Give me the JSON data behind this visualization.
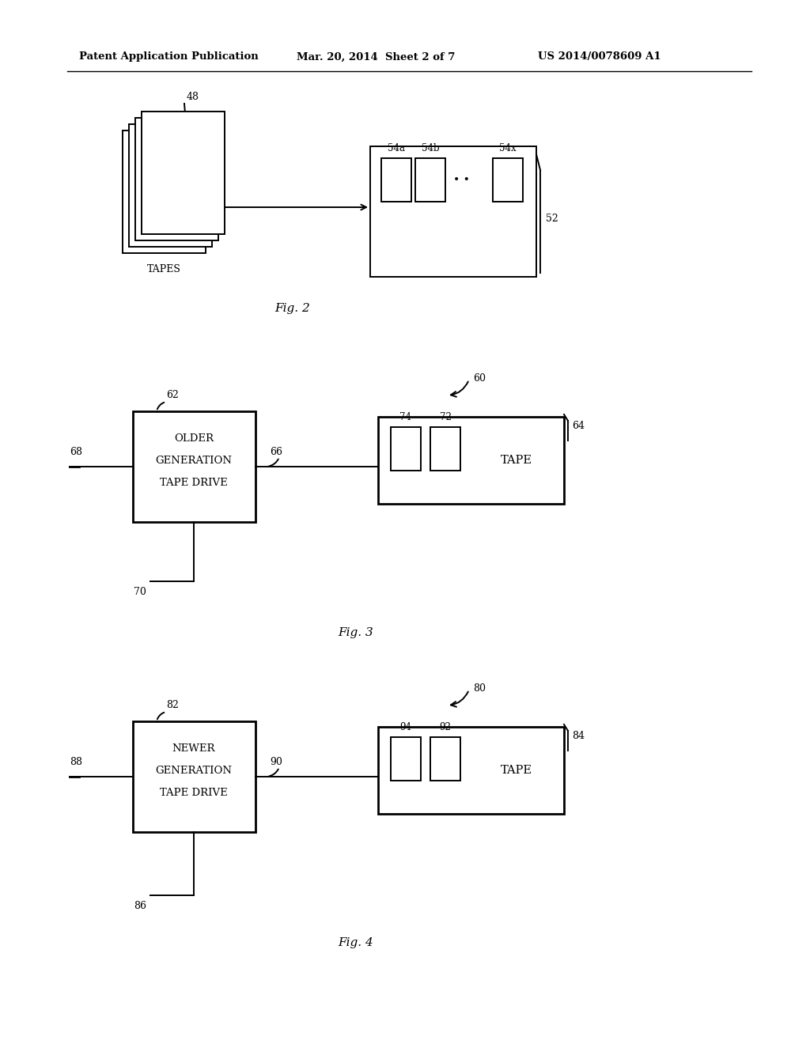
{
  "bg_color": "#ffffff",
  "header_left": "Patent Application Publication",
  "header_mid": "Mar. 20, 2014  Sheet 2 of 7",
  "header_right": "US 2014/0078609 A1",
  "fig2": {
    "label": "Fig. 2",
    "tapes_label": "TAPES",
    "tapes_ref": "48",
    "box_ref": "52",
    "slots": [
      "54a",
      "54b",
      "54x"
    ]
  },
  "fig3": {
    "label": "Fig. 3",
    "diagram_ref": "60",
    "drive_ref": "62",
    "drive_text": [
      "OLDER",
      "GENERATION",
      "TAPE DRIVE"
    ],
    "left_line_ref": "68",
    "conn_ref": "66",
    "bottom_ref": "70",
    "tape_box_ref": "64",
    "slot1_ref": "74",
    "slot2_ref": "72",
    "tape_label": "TAPE"
  },
  "fig4": {
    "label": "Fig. 4",
    "diagram_ref": "80",
    "drive_ref": "82",
    "drive_text": [
      "NEWER",
      "GENERATION",
      "TAPE DRIVE"
    ],
    "left_line_ref": "88",
    "conn_ref": "90",
    "bottom_ref": "86",
    "tape_box_ref": "84",
    "slot1_ref": "94",
    "slot2_ref": "92",
    "tape_label": "TAPE"
  }
}
